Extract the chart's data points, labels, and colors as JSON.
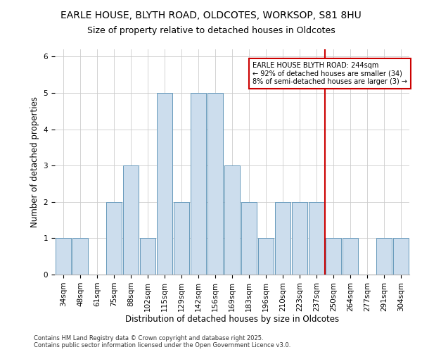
{
  "title1": "EARLE HOUSE, BLYTH ROAD, OLDCOTES, WORKSOP, S81 8HU",
  "title2": "Size of property relative to detached houses in Oldcotes",
  "xlabel": "Distribution of detached houses by size in Oldcotes",
  "ylabel": "Number of detached properties",
  "categories": [
    "34sqm",
    "48sqm",
    "61sqm",
    "75sqm",
    "88sqm",
    "102sqm",
    "115sqm",
    "129sqm",
    "142sqm",
    "156sqm",
    "169sqm",
    "183sqm",
    "196sqm",
    "210sqm",
    "223sqm",
    "237sqm",
    "250sqm",
    "264sqm",
    "277sqm",
    "291sqm",
    "304sqm"
  ],
  "values": [
    1,
    1,
    0,
    2,
    3,
    1,
    5,
    2,
    5,
    5,
    3,
    2,
    1,
    2,
    2,
    2,
    1,
    1,
    0,
    1,
    1
  ],
  "bar_color": "#ccdded",
  "bar_edge_color": "#6699bb",
  "annotation_box_text": "EARLE HOUSE BLYTH ROAD: 244sqm\n← 92% of detached houses are smaller (34)\n8% of semi-detached houses are larger (3) →",
  "annotation_box_color": "#cc0000",
  "vline_color": "#cc0000",
  "ylim": [
    0,
    6.2
  ],
  "yticks": [
    0,
    1,
    2,
    3,
    4,
    5,
    6
  ],
  "grid_color": "#cccccc",
  "background_color": "#ffffff",
  "footer_text": "Contains HM Land Registry data © Crown copyright and database right 2025.\nContains public sector information licensed under the Open Government Licence v3.0.",
  "title_fontsize": 10,
  "subtitle_fontsize": 9,
  "axis_label_fontsize": 8.5,
  "tick_fontsize": 7.5,
  "annotation_fontsize": 7,
  "footer_fontsize": 6
}
